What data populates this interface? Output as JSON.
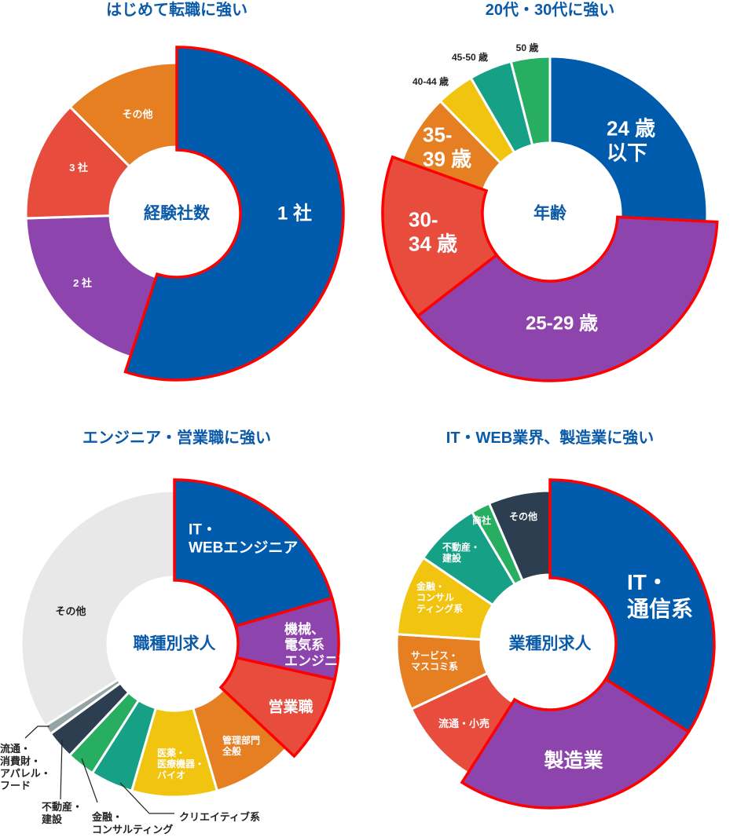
{
  "colors": {
    "blue": "#005bac",
    "purple": "#8e44ad",
    "red": "#e74c3c",
    "orange": "#e67e22",
    "yellow": "#f1c40f",
    "teal": "#16a085",
    "green": "#27ae60",
    "navy": "#2c3e50",
    "gray": "#95a5a6",
    "light": "#e8e8e8",
    "highlight": "#ff0000",
    "title": "#0a5aa8"
  },
  "chart_data": [
    {
      "type": "pie",
      "title": "はじめて転職に強い",
      "center_label": "経験社数",
      "slices": [
        {
          "lines": [
            "1 社"
          ],
          "value": 55,
          "color": "#005bac",
          "highlight": true
        },
        {
          "lines": [
            "2 社"
          ],
          "value": 19.5,
          "color": "#8e44ad",
          "highlight": false
        },
        {
          "lines": [
            "3 社"
          ],
          "value": 13,
          "color": "#e74c3c",
          "highlight": false
        },
        {
          "lines": [
            "その他"
          ],
          "value": 12.5,
          "color": "#e67e22",
          "highlight": false
        }
      ]
    },
    {
      "type": "pie",
      "title": "20代・30代に強い",
      "center_label": "年齢",
      "slices": [
        {
          "lines": [
            "24 歳",
            "以下"
          ],
          "value": 25.8,
          "color": "#005bac",
          "highlight": false
        },
        {
          "lines": [
            "25-29 歳"
          ],
          "value": 38.7,
          "color": "#8e44ad",
          "highlight": true
        },
        {
          "lines": [
            "30-",
            "34 歳"
          ],
          "value": 16,
          "color": "#e74c3c",
          "highlight": true
        },
        {
          "lines": [
            "35-",
            "39 歳"
          ],
          "value": 7.2,
          "color": "#e67e22",
          "highlight": false
        },
        {
          "lines": [
            "40-44 歳"
          ],
          "value": 3.9,
          "color": "#f1c40f",
          "highlight": false
        },
        {
          "lines": [
            "45-50 歳"
          ],
          "value": 4.4,
          "color": "#16a085",
          "highlight": false
        },
        {
          "lines": [
            "50 歳"
          ],
          "value": 4,
          "color": "#27ae60",
          "highlight": false
        }
      ]
    },
    {
      "type": "pie",
      "title": "エンジニア・営業職に強い",
      "center_label": "職種別求人",
      "slices": [
        {
          "lines": [
            "IT・",
            "WEBエンジニア"
          ],
          "value": 20.5,
          "color": "#005bac",
          "highlight": true
        },
        {
          "lines": [
            "機械、",
            "電気系",
            "エンジニア"
          ],
          "value": 8,
          "color": "#8e44ad",
          "highlight": true
        },
        {
          "lines": [
            "営業職"
          ],
          "value": 8.5,
          "color": "#e74c3c",
          "highlight": true
        },
        {
          "lines": [
            "管理部門",
            "全般"
          ],
          "value": 8.5,
          "color": "#e67e22",
          "highlight": false
        },
        {
          "lines": [
            "医薬・",
            "医療機器・",
            "バイオ"
          ],
          "value": 9,
          "color": "#f1c40f",
          "highlight": false
        },
        {
          "lines": [
            "クリエイティブ系"
          ],
          "value": 4.5,
          "color": "#16a085",
          "highlight": false
        },
        {
          "lines": [
            "金融・",
            "コンサルティング"
          ],
          "value": 3,
          "color": "#27ae60",
          "highlight": false
        },
        {
          "lines": [
            "不動産・",
            "建設"
          ],
          "value": 3,
          "color": "#2c3e50",
          "highlight": false
        },
        {
          "lines": [
            "流通・",
            "消費財・",
            "アパレル・",
            "フード"
          ],
          "value": 1,
          "color": "#95a5a6",
          "highlight": false
        },
        {
          "lines": [
            "その他"
          ],
          "value": 34,
          "color": "#e8e8e8",
          "highlight": false
        }
      ]
    },
    {
      "type": "pie",
      "title": "IT・WEB業界、製造業に強い",
      "center_label": "業種別求人",
      "slices": [
        {
          "lines": [
            "IT・",
            "通信系"
          ],
          "value": 34,
          "color": "#005bac",
          "highlight": true
        },
        {
          "lines": [
            "製造業"
          ],
          "value": 25,
          "color": "#8e44ad",
          "highlight": true
        },
        {
          "lines": [
            "流通・小売"
          ],
          "value": 9,
          "color": "#e74c3c",
          "highlight": false
        },
        {
          "lines": [
            "サービス・",
            "マスコミ系"
          ],
          "value": 8,
          "color": "#e67e22",
          "highlight": false
        },
        {
          "lines": [
            "金融・",
            "コンサル",
            "ティング系"
          ],
          "value": 8.5,
          "color": "#f1c40f",
          "highlight": false
        },
        {
          "lines": [
            "不動産・",
            "建設"
          ],
          "value": 7,
          "color": "#16a085",
          "highlight": false
        },
        {
          "lines": [
            "商社"
          ],
          "value": 2,
          "color": "#27ae60",
          "highlight": false
        },
        {
          "lines": [
            "その他"
          ],
          "value": 6.5,
          "color": "#2c3e50",
          "highlight": false
        }
      ]
    }
  ]
}
